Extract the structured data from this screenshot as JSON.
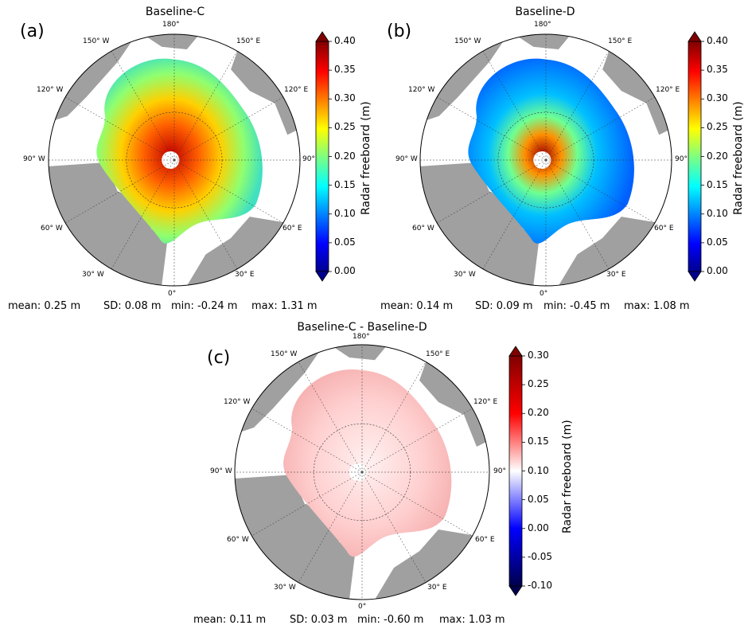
{
  "figure": {
    "panels": [
      {
        "id": "a",
        "panel_label": "(a)",
        "title": "Baseline-C",
        "stats": {
          "mean": "mean: 0.25 m",
          "sd": "SD: 0.08 m",
          "min": "min: -0.24 m",
          "max": "max: 1.31 m"
        },
        "colorbar": {
          "label": "Radar freeboard (m)",
          "ticks": [
            "0.40",
            "0.35",
            "0.30",
            "0.25",
            "0.20",
            "0.15",
            "0.10",
            "0.05",
            "0.00"
          ],
          "colormap": "jet"
        },
        "field_description": "high freeboard"
      },
      {
        "id": "b",
        "panel_label": "(b)",
        "title": "Baseline-D",
        "stats": {
          "mean": "mean: 0.14 m",
          "sd": "SD: 0.09 m",
          "min": "min: -0.45 m",
          "max": "max: 1.08 m"
        },
        "colorbar": {
          "label": "Radar freeboard (m)",
          "ticks": [
            "0.40",
            "0.35",
            "0.30",
            "0.25",
            "0.20",
            "0.15",
            "0.10",
            "0.05",
            "0.00"
          ],
          "colormap": "jet"
        },
        "field_description": "lower freeboard"
      },
      {
        "id": "c",
        "panel_label": "(c)",
        "title": "Baseline-C - Baseline-D",
        "stats": {
          "mean": "mean: 0.11 m",
          "sd": "SD: 0.03 m",
          "min": "min: -0.60 m",
          "max": "max: 1.03 m"
        },
        "colorbar": {
          "label": "Radar freeboard (m)",
          "ticks": [
            "0.30",
            "0.25",
            "0.20",
            "0.15",
            "0.10",
            "0.05",
            "0.00",
            "-0.05",
            "-0.10"
          ],
          "colormap": "seismic"
        },
        "field_description": "difference"
      }
    ],
    "longitude_labels": {
      "top": "180°",
      "bottom": "0°",
      "left": "90° W",
      "right": "90°",
      "ul1": "150° W",
      "ul2": "120° W",
      "ur1": "150° E",
      "ur2": "120° E",
      "ll1": "60° W",
      "ll2": "30° W",
      "lr1": "60° E",
      "lr2": "30° E"
    },
    "colors": {
      "land": "#a0a0a0",
      "ocean": "#ffffff",
      "pole_hole": "#ffffff"
    }
  }
}
